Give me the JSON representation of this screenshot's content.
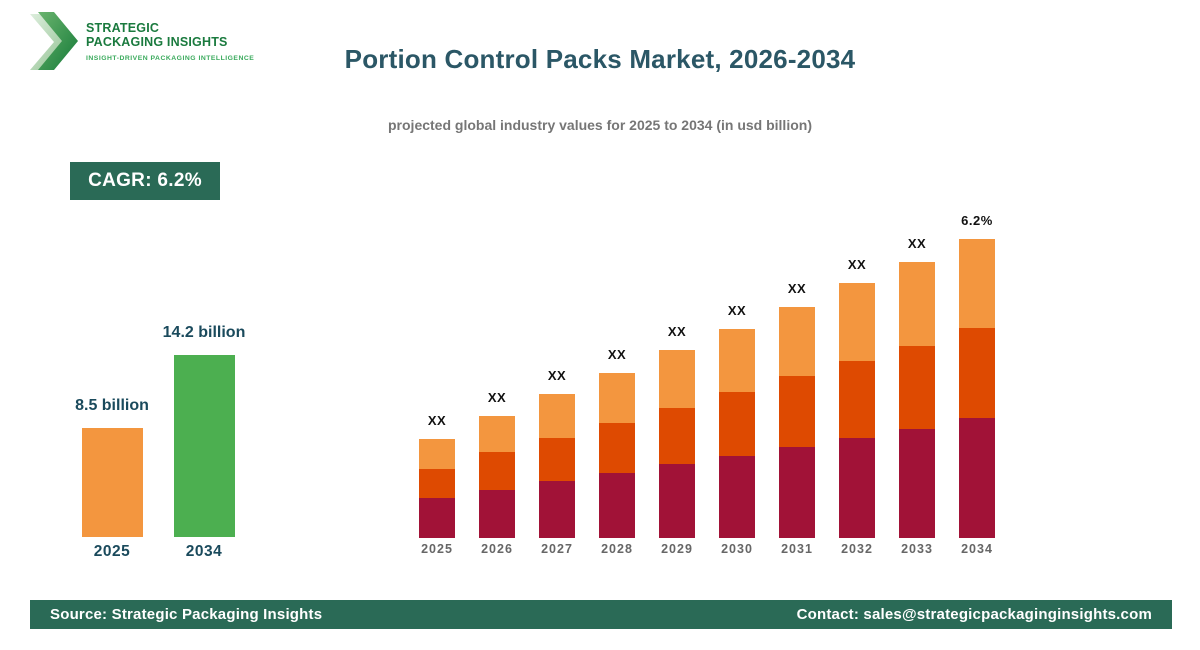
{
  "brand": {
    "line1": "STRATEGIC",
    "line2": "PACKAGING INSIGHTS",
    "tagline": "INSIGHT-DRIVEN PACKAGING INTELLIGENCE"
  },
  "header": {
    "title": "Portion Control Packs Market, 2026-2034",
    "subtitle": "projected global industry values for 2025 to 2034 (in usd billion)"
  },
  "badge": {
    "label": "CAGR: 6.2%"
  },
  "colors": {
    "accent_green": "#2a6a56",
    "title_teal": "#2b5766",
    "mini_label_teal": "#1a4a5c",
    "brand_green": "#1a7a3e",
    "tagline_green": "#3aaa5c",
    "bar_orange": "#f3963f",
    "bar_green": "#4caf50",
    "seg_maroon": "#a11237",
    "seg_orangered": "#de4a01",
    "seg_lightorange": "#f3963f"
  },
  "chart_data": [
    {
      "type": "bar",
      "name": "summary-growth-chart",
      "title": "",
      "categories": [
        "2025",
        "2034"
      ],
      "values": [
        8.5,
        14.2
      ],
      "value_labels": [
        "8.5 billion",
        "14.2 billion"
      ],
      "bar_colors": [
        "#f3963f",
        "#4caf50"
      ],
      "unit": "usd billion",
      "pixels_per_unit": 12.8,
      "grid": false,
      "legend": "none"
    },
    {
      "type": "bar",
      "subtype": "stacked",
      "name": "yearly-stacked-chart",
      "title": "",
      "categories": [
        "2025",
        "2026",
        "2027",
        "2028",
        "2029",
        "2030",
        "2031",
        "2032",
        "2033",
        "2034"
      ],
      "bar_top_labels": [
        "XX",
        "XX",
        "XX",
        "XX",
        "XX",
        "XX",
        "XX",
        "XX",
        "XX",
        "6.2%"
      ],
      "series": [
        {
          "name": "segment-bottom",
          "color": "#a11237",
          "values": [
            40,
            48,
            57,
            65,
            74,
            82,
            91,
            100,
            109,
            120
          ]
        },
        {
          "name": "segment-middle",
          "color": "#de4a01",
          "values": [
            29,
            38,
            43,
            50,
            56,
            64,
            71,
            77,
            83,
            90
          ]
        },
        {
          "name": "segment-top",
          "color": "#f3963f",
          "values": [
            30,
            36,
            44,
            50,
            58,
            63,
            69,
            78,
            84,
            89
          ]
        }
      ],
      "value_note": "numeric values masked as XX in the source image; series values are relative bar-segment heights read from pixels",
      "grid": false,
      "legend": "none"
    }
  ],
  "footer": {
    "source": "Source: Strategic Packaging Insights",
    "contact": "Contact: sales@strategicpackaginginsights.com"
  }
}
